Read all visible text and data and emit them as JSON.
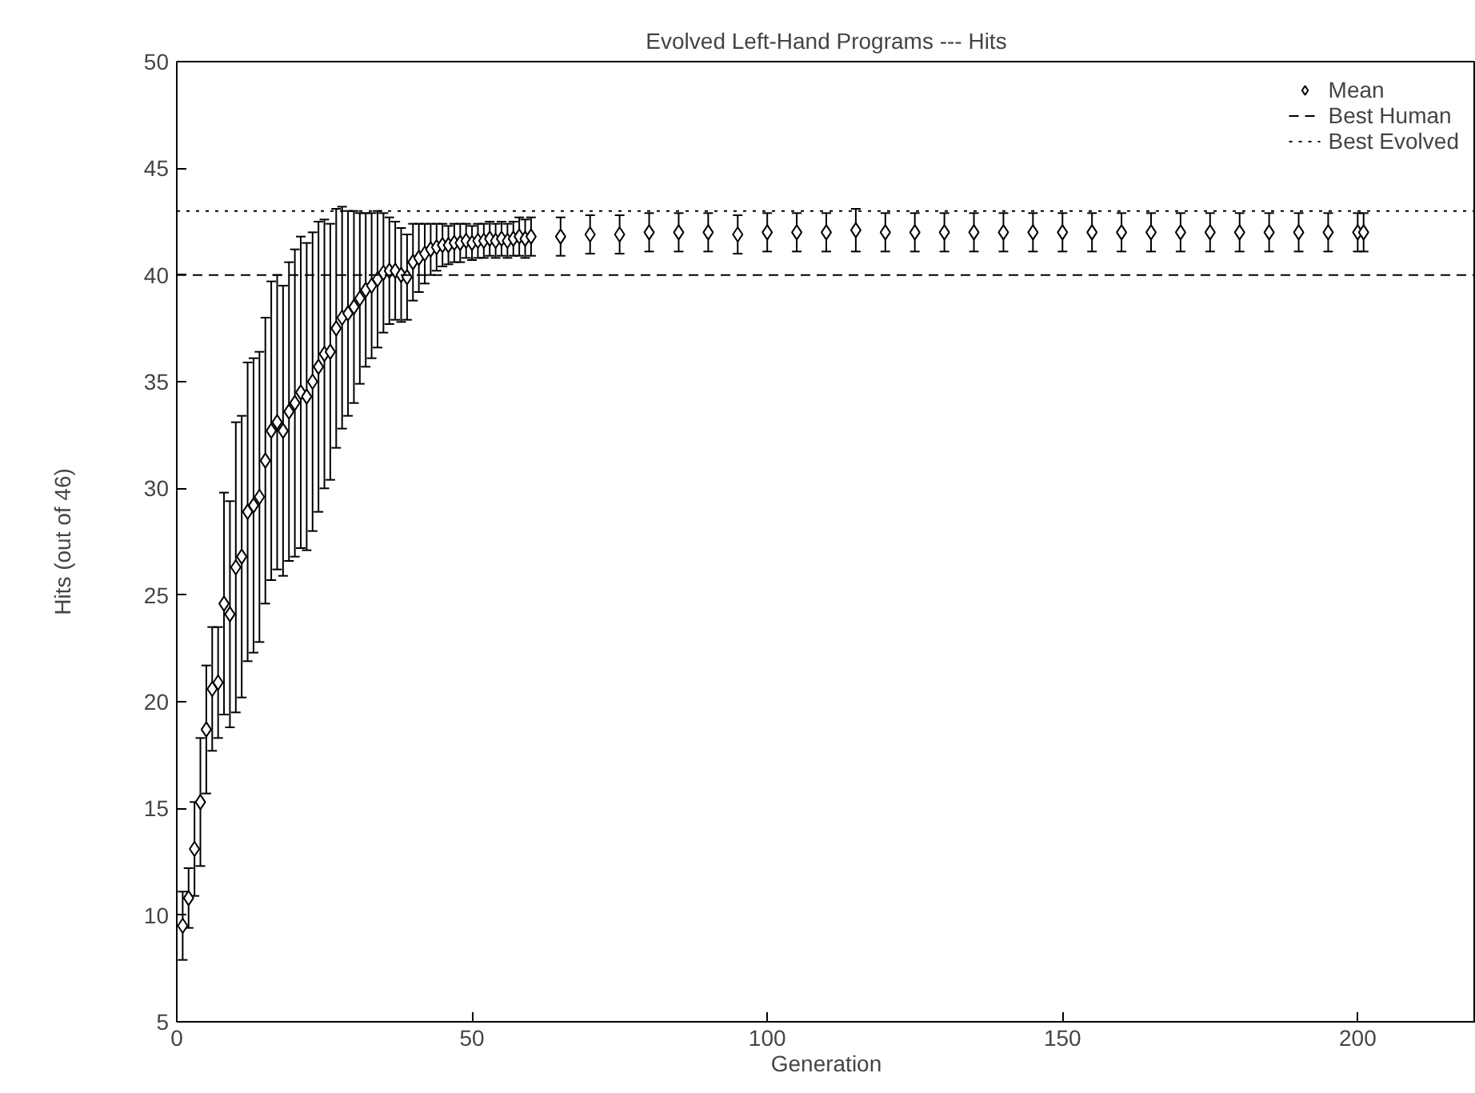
{
  "chart_data": {
    "type": "scatter",
    "title": "Evolved Left-Hand Programs --- Hits",
    "xlabel": "Generation",
    "ylabel": "Hits (out of 46)",
    "x": [
      1,
      2,
      3,
      4,
      5,
      6,
      7,
      8,
      9,
      10,
      11,
      12,
      13,
      14,
      15,
      16,
      17,
      18,
      19,
      20,
      21,
      22,
      23,
      24,
      25,
      26,
      27,
      28,
      29,
      30,
      31,
      32,
      33,
      34,
      35,
      36,
      37,
      38,
      39,
      40,
      41,
      42,
      43,
      44,
      45,
      46,
      47,
      48,
      49,
      50,
      51,
      52,
      53,
      54,
      55,
      56,
      57,
      58,
      59,
      60,
      65,
      70,
      75,
      80,
      85,
      90,
      95,
      100,
      105,
      110,
      115,
      120,
      125,
      130,
      135,
      140,
      145,
      150,
      155,
      160,
      165,
      170,
      175,
      180,
      185,
      190,
      195,
      200,
      201
    ],
    "series": [
      {
        "name": "Mean",
        "color": "#000000",
        "values": [
          9.5,
          10.8,
          13.1,
          15.3,
          18.7,
          20.6,
          20.9,
          24.6,
          24.1,
          26.3,
          26.8,
          28.9,
          29.2,
          29.6,
          31.3,
          32.7,
          33.1,
          32.7,
          33.6,
          34.0,
          34.5,
          34.3,
          35.0,
          35.7,
          36.3,
          36.4,
          37.5,
          38.0,
          38.2,
          38.5,
          38.9,
          39.3,
          39.5,
          39.8,
          40.1,
          40.2,
          40.2,
          40.0,
          39.9,
          40.6,
          40.8,
          41.0,
          41.2,
          41.3,
          41.4,
          41.4,
          41.5,
          41.5,
          41.6,
          41.5,
          41.6,
          41.6,
          41.7,
          41.6,
          41.7,
          41.6,
          41.7,
          41.8,
          41.7,
          41.8,
          41.8,
          41.9,
          41.9,
          42.0,
          42.0,
          42.0,
          41.9,
          42.0,
          42.0,
          42.0,
          42.1,
          42.0,
          42.0,
          42.0,
          42.0,
          42.0,
          42.0,
          42.0,
          42.0,
          42.0,
          42.0,
          42.0,
          42.0,
          42.0,
          42.0,
          42.0,
          42.0,
          42.0,
          42.0
        ],
        "errors": [
          1.6,
          1.4,
          2.2,
          3.0,
          3.0,
          2.9,
          2.6,
          5.2,
          5.3,
          6.8,
          6.6,
          7.0,
          6.9,
          6.8,
          6.7,
          7.0,
          6.9,
          6.8,
          7.0,
          7.2,
          7.3,
          7.2,
          7.0,
          6.8,
          6.3,
          6.0,
          5.6,
          5.2,
          4.8,
          4.5,
          4.0,
          3.6,
          3.4,
          3.2,
          2.8,
          2.5,
          2.3,
          2.2,
          2.0,
          1.8,
          1.6,
          1.4,
          1.2,
          1.1,
          1.0,
          0.9,
          0.9,
          0.9,
          0.8,
          0.8,
          0.8,
          0.8,
          0.8,
          0.8,
          0.8,
          0.8,
          0.8,
          0.9,
          0.9,
          0.9,
          0.9,
          0.9,
          0.9,
          0.9,
          0.9,
          0.9,
          0.9,
          0.9,
          0.9,
          0.9,
          1.0,
          0.9,
          0.9,
          0.9,
          0.9,
          0.9,
          0.9,
          0.9,
          0.9,
          0.9,
          0.9,
          0.9,
          0.9,
          0.9,
          0.9,
          0.9,
          0.9,
          0.9,
          0.9
        ]
      }
    ],
    "ref_lines": [
      {
        "axis": "y",
        "value": 40,
        "label": "Best Human",
        "color": "#000000",
        "line_style": "dashed"
      },
      {
        "axis": "y",
        "value": 43,
        "label": "Best Evolved",
        "color": "#000000",
        "line_style": "dotted"
      }
    ],
    "marker": "diamond",
    "legend": "top right",
    "grid": false,
    "xlim": [
      0,
      220
    ],
    "xticks": [
      0,
      50,
      100,
      150,
      200
    ],
    "ylim": [
      5,
      50
    ],
    "yticks": [
      5,
      10,
      15,
      20,
      25,
      30,
      35,
      40,
      45,
      50
    ]
  }
}
